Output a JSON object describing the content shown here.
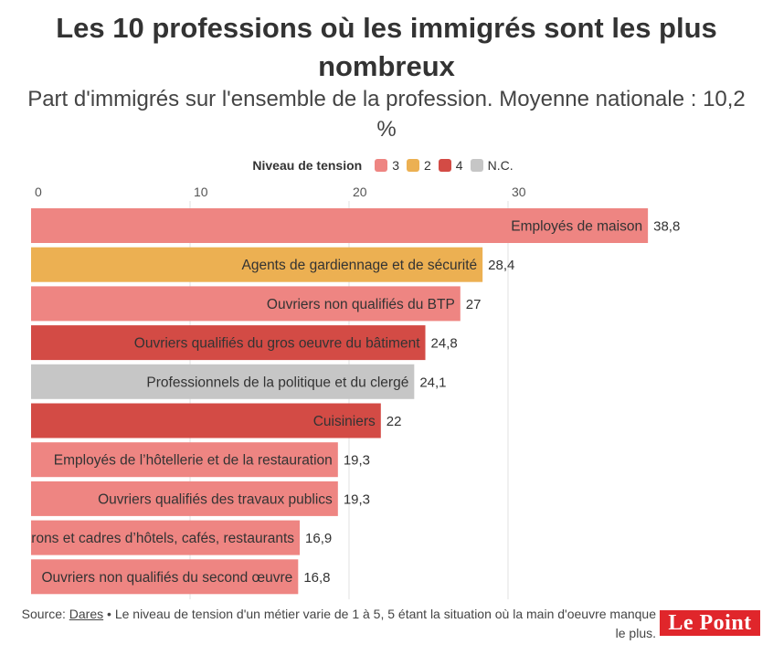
{
  "header": {
    "title": "Les 10 professions où les immigrés sont les plus nombreux",
    "subtitle": "Part d'immigrés sur l'ensemble de la profession. Moyenne nationale : 10,2 %"
  },
  "legend": {
    "title": "Niveau de tension",
    "items": [
      {
        "label": "3",
        "color": "#ee8582"
      },
      {
        "label": "2",
        "color": "#ecb052"
      },
      {
        "label": "4",
        "color": "#d34b45"
      },
      {
        "label": "N.C.",
        "color": "#c6c6c6"
      }
    ]
  },
  "chart_data": {
    "type": "bar",
    "orientation": "horizontal",
    "title": "Les 10 professions où les immigrés sont les plus nombreux",
    "subtitle": "Part d'immigrés sur l'ensemble de la profession. Moyenne nationale : 10,2 %",
    "x_ticks": [
      "0",
      "10",
      "20",
      "30"
    ],
    "xlim": [
      0,
      40
    ],
    "grid": true,
    "legend_position": "top",
    "categories": [
      "Employés de maison",
      "Agents de gardiennage et de sécurité",
      "Ouvriers non qualifiés du BTP",
      "Ouvriers qualifiés du gros oeuvre du bâtiment",
      "Professionnels de la politique et du clergé",
      "Cuisiniers",
      "Employés de l’hôtellerie et de la restauration",
      "Ouvriers qualifiés des travaux publics",
      "Patrons et cadres d’hôtels, cafés, restaurants",
      "Ouvriers non qualifiés du second œuvre"
    ],
    "values": [
      38.8,
      28.4,
      27,
      24.8,
      24.1,
      22,
      19.3,
      19.3,
      16.9,
      16.8
    ],
    "value_labels": [
      "38,8",
      "28,4",
      "27",
      "24,8",
      "24,1",
      "22",
      "19,3",
      "19,3",
      "16,9",
      "16,8"
    ],
    "tension": [
      "3",
      "2",
      "3",
      "4",
      "N.C.",
      "4",
      "3",
      "3",
      "3",
      "3"
    ]
  },
  "footer": {
    "source_prefix": "Source: ",
    "source_link": "Dares",
    "note": " • Le niveau de tension d'un métier varie de 1 à 5, 5 étant la situation où la main d'oeuvre manque le plus."
  },
  "logo": {
    "text": "Le Point"
  }
}
